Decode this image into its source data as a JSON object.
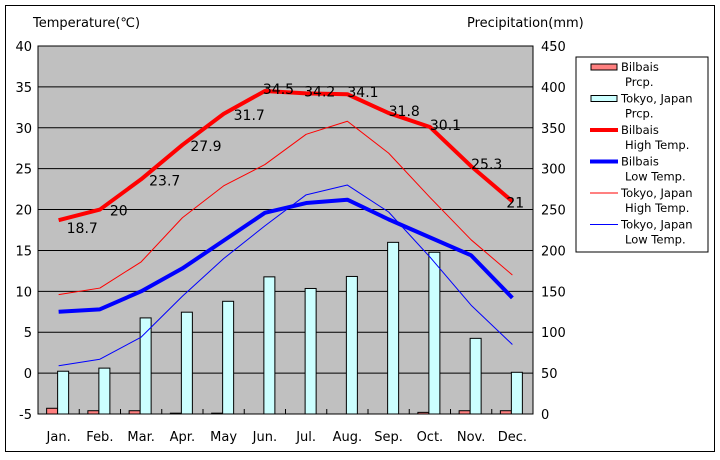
{
  "chart_data": {
    "type": "bar+line",
    "title_left": "Temperature(℃)",
    "title_right": "Precipitation(mm)",
    "categories": [
      "Jan.",
      "Feb.",
      "Mar.",
      "Apr.",
      "May",
      "Jun.",
      "Jul.",
      "Aug.",
      "Sep.",
      "Oct.",
      "Nov.",
      "Dec."
    ],
    "y_left": {
      "min": -5,
      "max": 40,
      "ticks": [
        -5,
        0,
        5,
        10,
        15,
        20,
        25,
        30,
        35,
        40
      ]
    },
    "y_right": {
      "min": 0,
      "max": 450,
      "ticks": [
        0,
        50,
        100,
        150,
        200,
        250,
        300,
        350,
        400,
        450
      ]
    },
    "grid": true,
    "legend_position": "right",
    "bar_series": [
      {
        "name": "Bilbais Prcp.",
        "legend": [
          "Bilbais",
          "Prcp."
        ],
        "color": "#ff8080",
        "values": [
          7,
          4,
          4,
          1,
          1,
          0,
          0,
          0,
          0,
          2,
          4,
          4
        ]
      },
      {
        "name": "Tokyo, Japan Prcp.",
        "legend": [
          "Tokyo, Japan",
          "Prcp."
        ],
        "color": "#ccffff",
        "values": [
          52.3,
          56.1,
          117.5,
          124.5,
          137.8,
          167.7,
          153.5,
          168.2,
          209.9,
          197.8,
          92.5,
          51.0
        ]
      }
    ],
    "line_series": [
      {
        "name": "Bilbais High Temp.",
        "legend": [
          "Bilbais",
          "High Temp."
        ],
        "color": "#ff0000",
        "width": 4,
        "labeled": true,
        "values": [
          18.7,
          20,
          23.7,
          27.9,
          31.7,
          34.5,
          34.2,
          34.1,
          31.8,
          30.1,
          25.3,
          21
        ],
        "labels": [
          "18.7",
          "20",
          "23.7",
          "27.9",
          "31.7",
          "34.5",
          "34.2",
          "34.1",
          "31.8",
          "30.1",
          "25.3",
          "21"
        ]
      },
      {
        "name": "Bilbais Low Temp.",
        "legend": [
          "Bilbais",
          "Low Temp."
        ],
        "color": "#0000ff",
        "width": 4,
        "labeled": false,
        "values": [
          7.5,
          7.8,
          10.0,
          12.8,
          16.2,
          19.6,
          20.8,
          21.2,
          18.8,
          16.6,
          14.4,
          9.2
        ]
      },
      {
        "name": "Tokyo, Japan High Temp.",
        "legend": [
          "Tokyo, Japan",
          "High Temp."
        ],
        "color": "#ff0000",
        "width": 1,
        "labeled": false,
        "values": [
          9.6,
          10.4,
          13.6,
          19.0,
          22.9,
          25.5,
          29.2,
          30.8,
          26.9,
          21.5,
          16.3,
          12.0
        ]
      },
      {
        "name": "Tokyo, Japan Low Temp.",
        "legend": [
          "Tokyo, Japan",
          "Low Temp."
        ],
        "color": "#0000ff",
        "width": 1,
        "labeled": false,
        "values": [
          0.9,
          1.7,
          4.4,
          9.4,
          14.0,
          18.0,
          21.8,
          23.0,
          19.7,
          14.2,
          8.3,
          3.5
        ]
      }
    ],
    "plot_background": "#c0c0c0"
  }
}
